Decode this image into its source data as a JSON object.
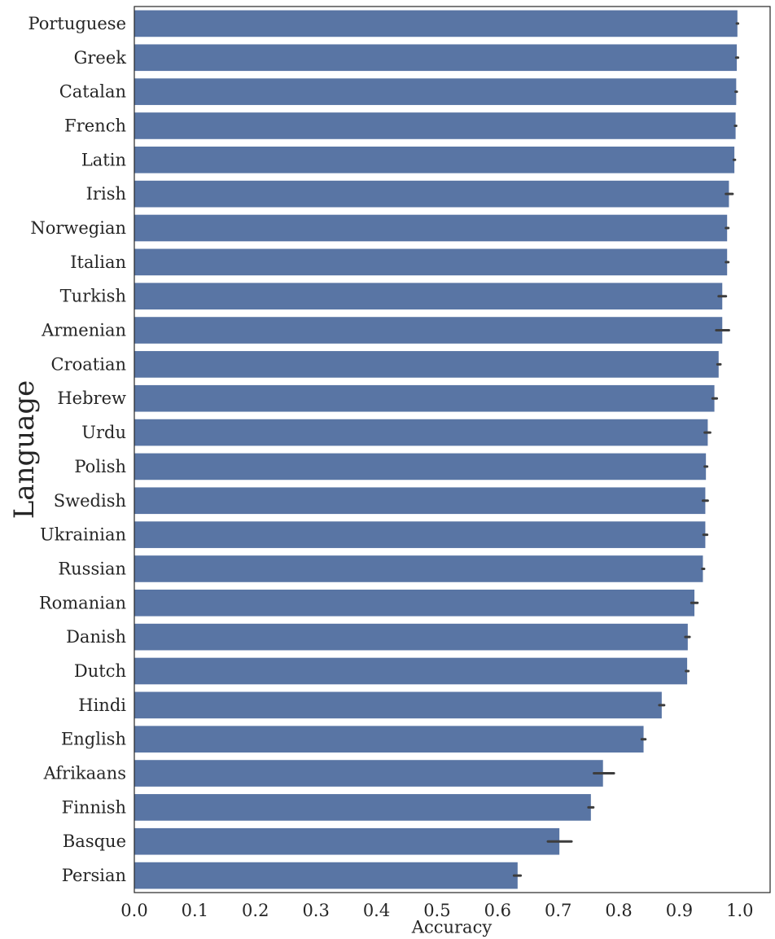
{
  "chart_data": {
    "type": "bar",
    "orientation": "horizontal",
    "xlabel": "Accuracy",
    "ylabel": "Language",
    "xlim": [
      0.0,
      1.05
    ],
    "xticks": [
      "0.0",
      "0.1",
      "0.2",
      "0.3",
      "0.4",
      "0.5",
      "0.6",
      "0.7",
      "0.8",
      "0.9",
      "1.0"
    ],
    "grid": false,
    "bar_color": "#5975a4",
    "errorbar_color": "#3d3d3d",
    "categories": [
      "Portuguese",
      "Greek",
      "Catalan",
      "French",
      "Latin",
      "Irish",
      "Norwegian",
      "Italian",
      "Turkish",
      "Armenian",
      "Croatian",
      "Hebrew",
      "Urdu",
      "Polish",
      "Swedish",
      "Ukrainian",
      "Russian",
      "Romanian",
      "Danish",
      "Dutch",
      "Hindi",
      "English",
      "Afrikaans",
      "Finnish",
      "Basque",
      "Persian"
    ],
    "values": [
      0.996,
      0.995,
      0.994,
      0.993,
      0.991,
      0.982,
      0.979,
      0.979,
      0.971,
      0.971,
      0.965,
      0.958,
      0.947,
      0.944,
      0.943,
      0.943,
      0.939,
      0.925,
      0.914,
      0.913,
      0.871,
      0.841,
      0.774,
      0.754,
      0.702,
      0.633
    ],
    "error_low": [
      0.995,
      0.994,
      0.993,
      0.992,
      0.99,
      0.977,
      0.977,
      0.977,
      0.965,
      0.961,
      0.963,
      0.955,
      0.942,
      0.942,
      0.939,
      0.94,
      0.938,
      0.92,
      0.91,
      0.911,
      0.867,
      0.838,
      0.759,
      0.75,
      0.683,
      0.627
    ],
    "error_high": [
      0.997,
      0.997,
      0.995,
      0.994,
      0.992,
      0.988,
      0.981,
      0.981,
      0.977,
      0.982,
      0.968,
      0.962,
      0.951,
      0.946,
      0.947,
      0.946,
      0.941,
      0.93,
      0.917,
      0.915,
      0.875,
      0.844,
      0.792,
      0.758,
      0.722,
      0.638
    ]
  }
}
